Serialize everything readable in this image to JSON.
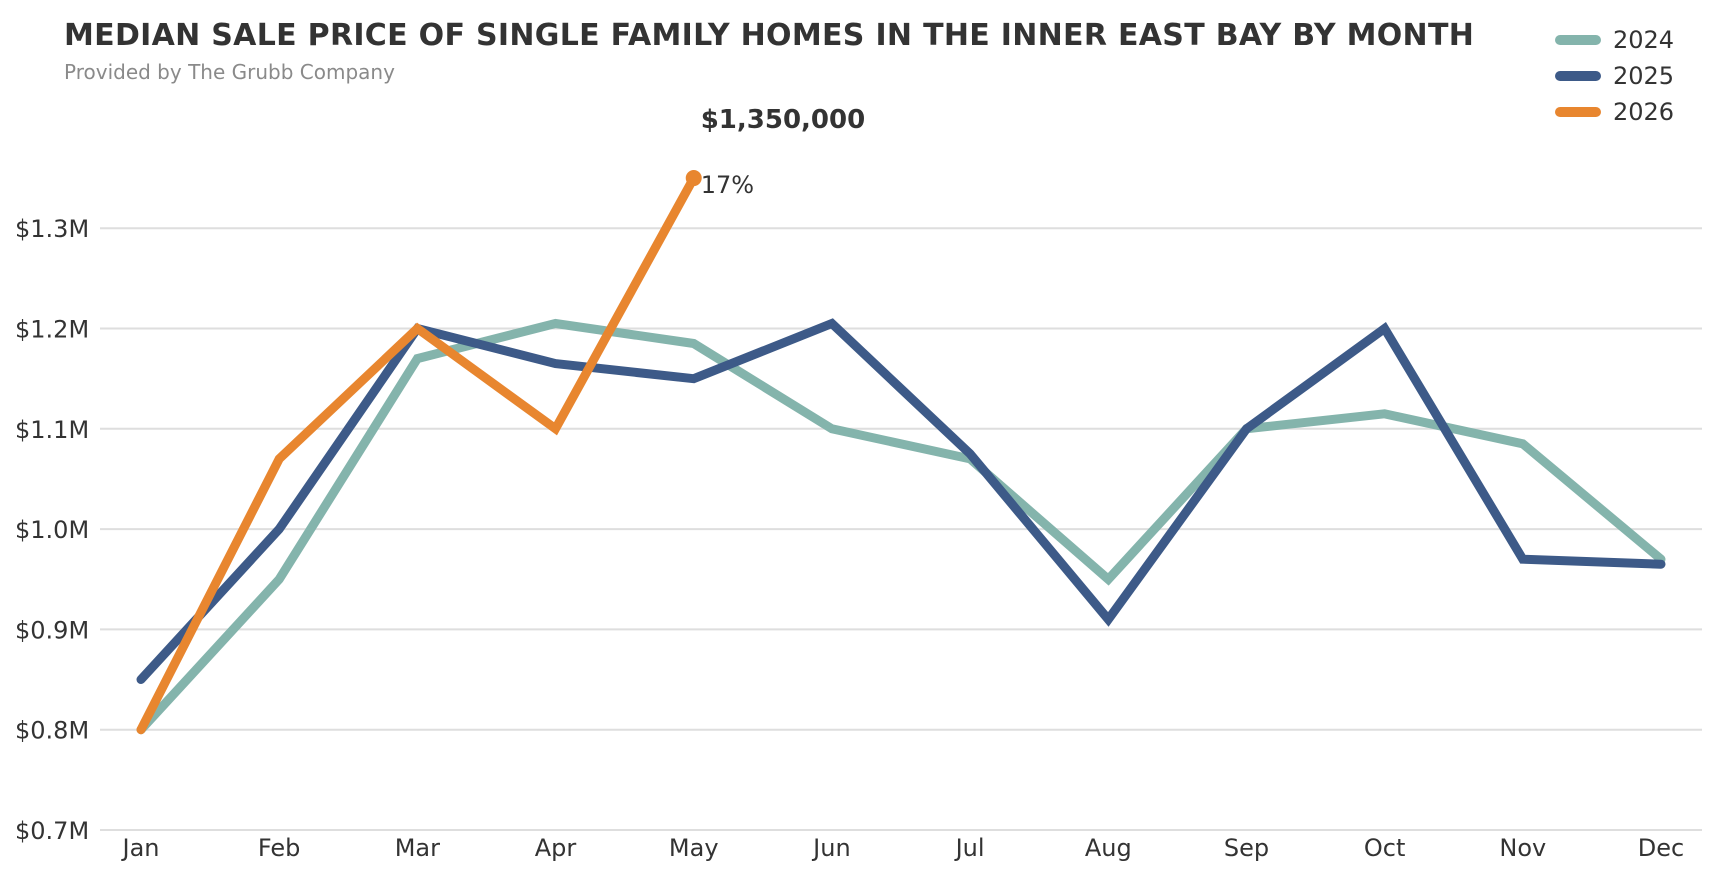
{
  "chart_data": {
    "type": "line",
    "title": "MEDIAN SALE PRICE OF SINGLE FAMILY HOMES IN THE INNER EAST BAY BY MONTH",
    "subtitle": "Provided by The Grubb Company",
    "xlabel": "",
    "ylabel": "",
    "categories": [
      "Jan",
      "Feb",
      "Mar",
      "Apr",
      "May",
      "Jun",
      "Jul",
      "Aug",
      "Sep",
      "Oct",
      "Nov",
      "Dec"
    ],
    "y_ticks": [
      700000,
      800000,
      900000,
      1000000,
      1100000,
      1200000,
      1300000
    ],
    "y_tick_labels": [
      "$0.7M",
      "$0.8M",
      "$0.9M",
      "$1.0M",
      "$1.1M",
      "$1.2M",
      "$1.3M"
    ],
    "ylim": [
      700000,
      1390000
    ],
    "grid": "horizontal",
    "legend_position": "top-right",
    "series": [
      {
        "name": "2024",
        "color": "#84b4ac",
        "values": [
          800000,
          950000,
          1170000,
          1205000,
          1185000,
          1100000,
          1070000,
          950000,
          1100000,
          1115000,
          1085000,
          970000
        ]
      },
      {
        "name": "2025",
        "color": "#3d5a88",
        "values": [
          850000,
          1000000,
          1200000,
          1165000,
          1150000,
          1205000,
          1075000,
          910000,
          1100000,
          1200000,
          970000,
          965000
        ]
      },
      {
        "name": "2026",
        "color": "#e8862f",
        "values": [
          800000,
          1070000,
          1200000,
          1100000,
          1350000,
          null,
          null,
          null,
          null,
          null,
          null,
          null
        ]
      }
    ],
    "annotation": {
      "value_label": "$1,350,000",
      "change_label": "17%"
    }
  }
}
